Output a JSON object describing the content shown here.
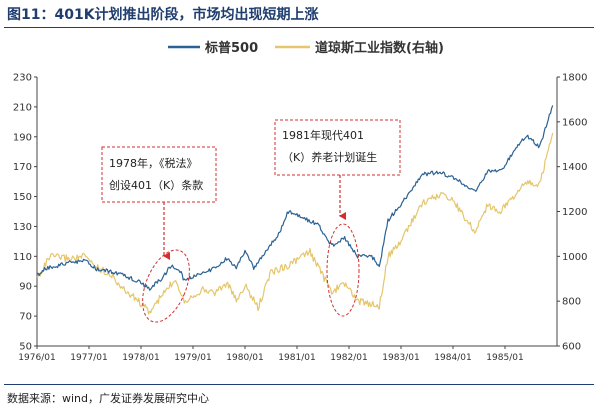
{
  "header": {
    "title": "图11：401K计划推出阶段，市场均出现短期上涨"
  },
  "footer": {
    "source": "数据来源：wind，广发证券发展研究中心"
  },
  "colors": {
    "sp500": "#2b6193",
    "dow": "#e5c66d",
    "annotation": "#d32f2f",
    "accent": "#1f3d6e"
  },
  "chart_data": {
    "type": "line",
    "legend_position": "top-center",
    "grid": false,
    "x_ticks": [
      "1976/01",
      "1977/01",
      "1978/01",
      "1979/01",
      "1980/01",
      "1981/01",
      "1982/01",
      "1983/01",
      "1984/01",
      "1985/01"
    ],
    "y_left": {
      "ylim": [
        50,
        230
      ],
      "ticks": [
        50,
        70,
        90,
        110,
        130,
        150,
        170,
        190,
        210,
        230
      ]
    },
    "y_right": {
      "ylim": [
        600,
        1800
      ],
      "ticks": [
        600,
        800,
        1000,
        1200,
        1400,
        1600,
        1800
      ]
    },
    "series": [
      {
        "name": "标普500",
        "axis": "left",
        "points": [
          [
            "1976-01",
            97
          ],
          [
            "1976-03",
            102
          ],
          [
            "1976-06",
            104
          ],
          [
            "1976-09",
            106
          ],
          [
            "1976-12",
            107
          ],
          [
            "1977-03",
            101
          ],
          [
            "1977-06",
            100
          ],
          [
            "1977-09",
            97
          ],
          [
            "1977-12",
            94
          ],
          [
            "1978-03",
            88
          ],
          [
            "1978-06",
            96
          ],
          [
            "1978-08",
            104
          ],
          [
            "1978-10",
            100
          ],
          [
            "1978-11",
            94
          ],
          [
            "1979-03",
            99
          ],
          [
            "1979-06",
            102
          ],
          [
            "1979-09",
            109
          ],
          [
            "1979-11",
            102
          ],
          [
            "1980-01",
            114
          ],
          [
            "1980-03",
            102
          ],
          [
            "1980-06",
            114
          ],
          [
            "1980-09",
            126
          ],
          [
            "1980-11",
            140
          ],
          [
            "1981-03",
            135
          ],
          [
            "1981-06",
            131
          ],
          [
            "1981-09",
            117
          ],
          [
            "1981-12",
            122
          ],
          [
            "1982-03",
            110
          ],
          [
            "1982-06",
            111
          ],
          [
            "1982-08",
            103
          ],
          [
            "1982-10",
            134
          ],
          [
            "1983-01",
            145
          ],
          [
            "1983-06",
            165
          ],
          [
            "1983-10",
            166
          ],
          [
            "1984-01",
            163
          ],
          [
            "1984-06",
            153
          ],
          [
            "1984-09",
            167
          ],
          [
            "1984-12",
            167
          ],
          [
            "1985-03",
            180
          ],
          [
            "1985-06",
            191
          ],
          [
            "1985-09",
            183
          ],
          [
            "1985-12",
            211
          ]
        ]
      },
      {
        "name": "道琼斯工业指数(右轴)",
        "axis": "right",
        "points": [
          [
            "1976-01",
            900
          ],
          [
            "1976-04",
            1000
          ],
          [
            "1976-09",
            990
          ],
          [
            "1976-12",
            1000
          ],
          [
            "1977-03",
            950
          ],
          [
            "1977-06",
            920
          ],
          [
            "1977-09",
            850
          ],
          [
            "1977-12",
            810
          ],
          [
            "1978-03",
            750
          ],
          [
            "1978-06",
            830
          ],
          [
            "1978-09",
            900
          ],
          [
            "1978-11",
            800
          ],
          [
            "1979-03",
            850
          ],
          [
            "1979-06",
            840
          ],
          [
            "1979-09",
            880
          ],
          [
            "1979-11",
            800
          ],
          [
            "1980-01",
            870
          ],
          [
            "1980-04",
            770
          ],
          [
            "1980-07",
            930
          ],
          [
            "1980-11",
            960
          ],
          [
            "1981-04",
            1020
          ],
          [
            "1981-09",
            840
          ],
          [
            "1981-12",
            880
          ],
          [
            "1982-03",
            800
          ],
          [
            "1982-08",
            780
          ],
          [
            "1982-10",
            1000
          ],
          [
            "1982-12",
            1040
          ],
          [
            "1983-03",
            1140
          ],
          [
            "1983-06",
            1240
          ],
          [
            "1983-11",
            1280
          ],
          [
            "1984-01",
            1250
          ],
          [
            "1984-06",
            1110
          ],
          [
            "1984-09",
            1230
          ],
          [
            "1984-12",
            1200
          ],
          [
            "1985-03",
            1270
          ],
          [
            "1985-06",
            1330
          ],
          [
            "1985-09",
            1320
          ],
          [
            "1985-12",
            1550
          ]
        ]
      }
    ],
    "annotations": [
      {
        "lines": [
          "1978年，《税法》",
          "创设401（K）条款"
        ]
      },
      {
        "lines": [
          "1981年现代401",
          "（K）养老计划诞生"
        ]
      }
    ]
  }
}
